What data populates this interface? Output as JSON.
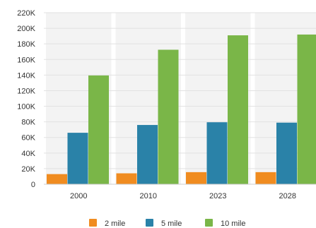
{
  "chart_data": {
    "type": "bar",
    "categories": [
      "2000",
      "2010",
      "2023",
      "2028"
    ],
    "series": [
      {
        "name": "2 mile",
        "color": "#f08c20",
        "values": [
          13000,
          14000,
          15500,
          15500
        ]
      },
      {
        "name": "5 mile",
        "color": "#2a82a8",
        "values": [
          66000,
          76000,
          79500,
          79000
        ]
      },
      {
        "name": "10 mile",
        "color": "#7ab648",
        "values": [
          139500,
          172500,
          191000,
          192000
        ]
      }
    ],
    "ylim": [
      0,
      220000
    ],
    "y_ticks": [
      "0",
      "20K",
      "40K",
      "60K",
      "80K",
      "100K",
      "120K",
      "140K",
      "160K",
      "180K",
      "200K",
      "220K"
    ],
    "grid": true,
    "legend": "bottom"
  }
}
